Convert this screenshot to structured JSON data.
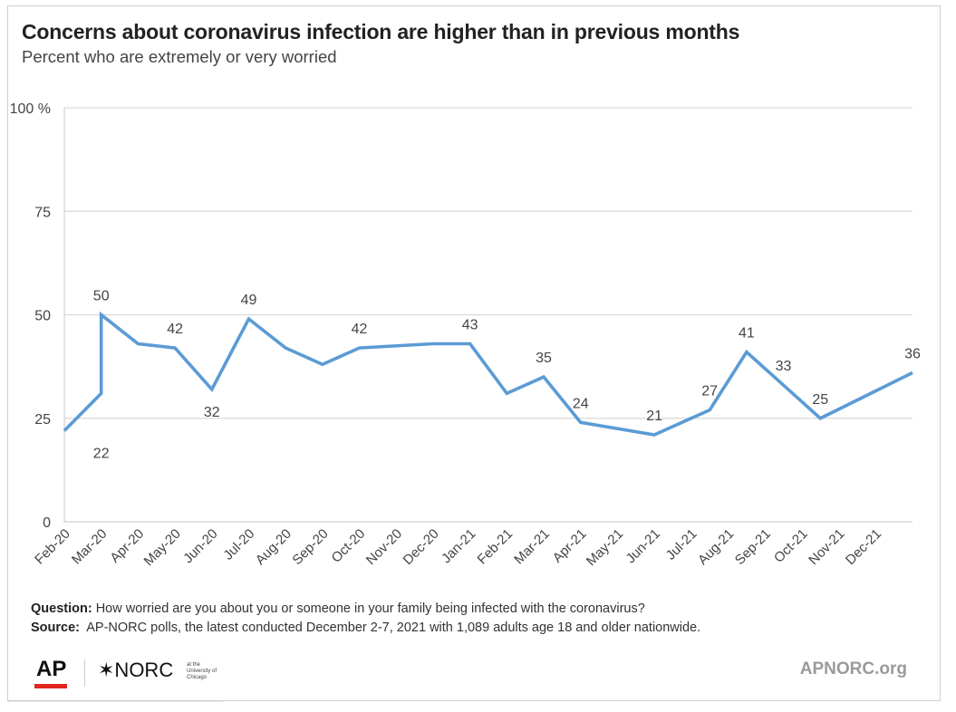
{
  "title": "Concerns about coronavirus infection are higher than in previous months",
  "subtitle": "Percent who are extremely or very worried",
  "chart_data": {
    "type": "line",
    "color": "#5b9bd5",
    "ylim": [
      0,
      100
    ],
    "yticks": [
      {
        "value": 0,
        "label": "0"
      },
      {
        "value": 25,
        "label": "25"
      },
      {
        "value": 50,
        "label": "50"
      },
      {
        "value": 75,
        "label": "75"
      },
      {
        "value": 100,
        "label": "100 %"
      }
    ],
    "grid": true,
    "xlim": [
      0,
      23
    ],
    "categories": [
      "Feb-20",
      "Mar-20",
      "Apr-20",
      "May-20",
      "Jun-20",
      "Jul-20",
      "Aug-20",
      "Sep-20",
      "Oct-20",
      "Nov-20",
      "Dec-20",
      "Jan-21",
      "Feb-21",
      "Mar-21",
      "Apr-21",
      "May-21",
      "Jun-21",
      "Jul-21",
      "Aug-21",
      "Sep-21",
      "Oct-21",
      "Nov-21",
      "Dec-21"
    ],
    "points": [
      {
        "x": 0,
        "y": 22
      },
      {
        "x": 1,
        "y": 31
      },
      {
        "x": 1,
        "y": 50
      },
      {
        "x": 2,
        "y": 43
      },
      {
        "x": 3,
        "y": 42
      },
      {
        "x": 4,
        "y": 32
      },
      {
        "x": 5,
        "y": 49
      },
      {
        "x": 6,
        "y": 42
      },
      {
        "x": 7,
        "y": 38
      },
      {
        "x": 8,
        "y": 42
      },
      {
        "x": 10,
        "y": 43
      },
      {
        "x": 11,
        "y": 43
      },
      {
        "x": 12,
        "y": 31
      },
      {
        "x": 13,
        "y": 35
      },
      {
        "x": 14,
        "y": 24
      },
      {
        "x": 16,
        "y": 21
      },
      {
        "x": 17.5,
        "y": 27
      },
      {
        "x": 18.5,
        "y": 41
      },
      {
        "x": 19.5,
        "y": 33
      },
      {
        "x": 20.5,
        "y": 25
      },
      {
        "x": 23,
        "y": 36
      }
    ],
    "data_labels": [
      {
        "x": 1,
        "y": 50,
        "text": "50",
        "pos": "above"
      },
      {
        "x": 1,
        "y": 22,
        "text": "22",
        "pos": "below"
      },
      {
        "x": 3,
        "y": 42,
        "text": "42",
        "pos": "above"
      },
      {
        "x": 4,
        "y": 32,
        "text": "32",
        "pos": "below"
      },
      {
        "x": 5,
        "y": 49,
        "text": "49",
        "pos": "above"
      },
      {
        "x": 8,
        "y": 42,
        "text": "42",
        "pos": "above"
      },
      {
        "x": 11,
        "y": 43,
        "text": "43",
        "pos": "above"
      },
      {
        "x": 13,
        "y": 35,
        "text": "35",
        "pos": "above"
      },
      {
        "x": 14,
        "y": 24,
        "text": "24",
        "pos": "above"
      },
      {
        "x": 16,
        "y": 21,
        "text": "21",
        "pos": "above"
      },
      {
        "x": 17.5,
        "y": 27,
        "text": "27",
        "pos": "above"
      },
      {
        "x": 18.5,
        "y": 41,
        "text": "41",
        "pos": "above"
      },
      {
        "x": 19.5,
        "y": 33,
        "text": "33",
        "pos": "above"
      },
      {
        "x": 20.5,
        "y": 25,
        "text": "25",
        "pos": "above"
      },
      {
        "x": 23,
        "y": 36,
        "text": "36",
        "pos": "above"
      }
    ]
  },
  "notes": {
    "question_label": "Question:",
    "question_text": "How worried are you about you or someone in your family being infected with the coronavirus?",
    "source_label": "Source:",
    "source_text": "AP-NORC polls, the latest conducted December 2-7, 2021 with 1,089 adults age 18 and older nationwide."
  },
  "footer": {
    "ap_logo": "AP",
    "norc_logo": "✶NORC",
    "norc_sub": "at the University of Chicago",
    "site": "APNORC.org",
    "ap_red": "#e0261f"
  }
}
